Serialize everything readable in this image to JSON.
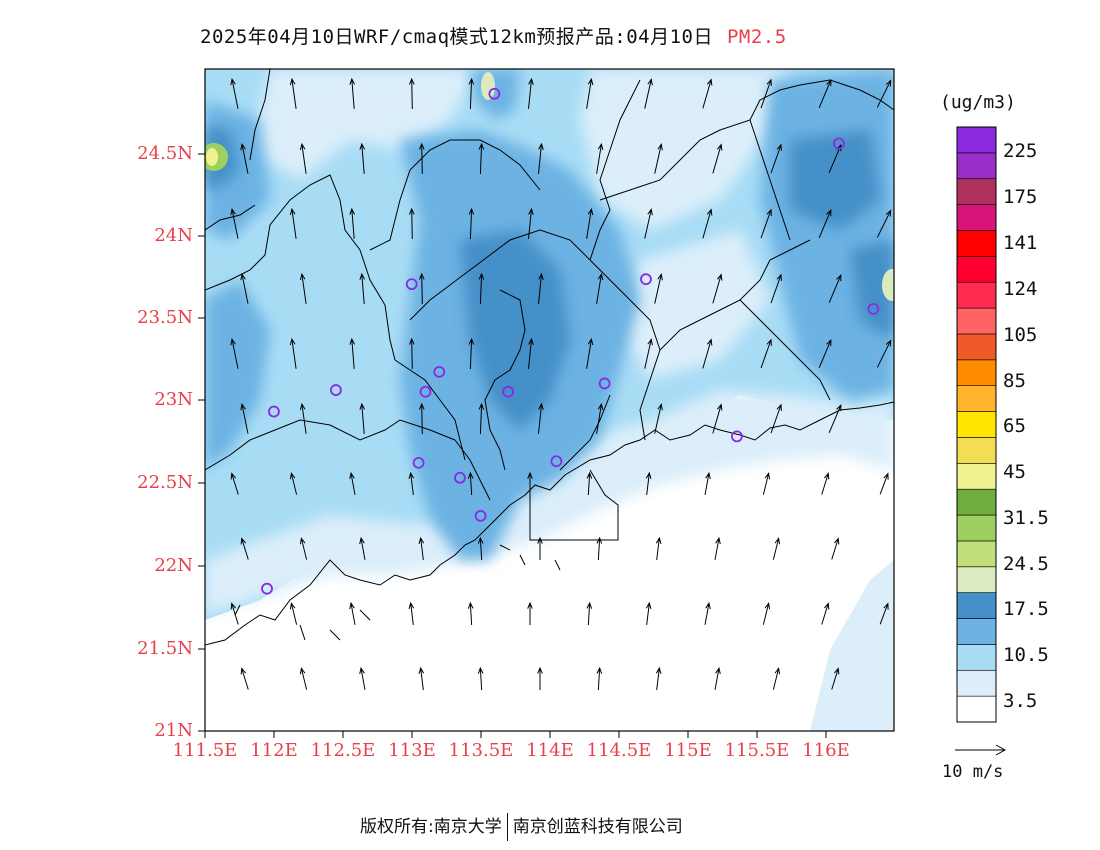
{
  "title": {
    "main": "2025年04月10日WRF/cmaq模式12km预报产品:04月10日",
    "pollutant": "PM2.5"
  },
  "axes": {
    "y_labels": [
      "24.5N",
      "24N",
      "23.5N",
      "23N",
      "22.5N",
      "22N",
      "21.5N",
      "21N"
    ],
    "x_labels": [
      "111.5E",
      "112E",
      "112.5E",
      "113E",
      "113.5E",
      "114E",
      "114.5E",
      "115E",
      "115.5E",
      "116E"
    ],
    "lon_range": [
      111.5,
      116.5
    ],
    "lat_range": [
      21.0,
      25.0
    ]
  },
  "legend": {
    "unit": "(ug/m3)",
    "colors": [
      "#ffffff",
      "#dbeefa",
      "#a8dcf5",
      "#6cb2e3",
      "#4590c8",
      "#dbebc0",
      "#c1e07a",
      "#9ed060",
      "#6eae3c",
      "#f0f290",
      "#f3dd55",
      "#ffe600",
      "#ffb42a",
      "#ff8c00",
      "#f05a28",
      "#ff6464",
      "#ff2a50",
      "#ff0030",
      "#ff0000",
      "#d8147a",
      "#b0305e",
      "#9a2ec8",
      "#8a2be2"
    ],
    "labels": [
      "3.5",
      "10.5",
      "17.5",
      "24.5",
      "31.5",
      "45",
      "65",
      "85",
      "105",
      "124",
      "141",
      "175",
      "225"
    ]
  },
  "wind_reference": {
    "label": "10 m/s"
  },
  "stations": [
    {
      "lon": 113.6,
      "lat": 24.85
    },
    {
      "lon": 116.1,
      "lat": 24.55
    },
    {
      "lon": 113.0,
      "lat": 23.7
    },
    {
      "lon": 114.7,
      "lat": 23.73
    },
    {
      "lon": 116.35,
      "lat": 23.55
    },
    {
      "lon": 113.2,
      "lat": 23.17
    },
    {
      "lon": 112.45,
      "lat": 23.06
    },
    {
      "lon": 113.1,
      "lat": 23.05
    },
    {
      "lon": 113.7,
      "lat": 23.05
    },
    {
      "lon": 114.4,
      "lat": 23.1
    },
    {
      "lon": 112.0,
      "lat": 22.93
    },
    {
      "lon": 115.36,
      "lat": 22.78
    },
    {
      "lon": 113.05,
      "lat": 22.62
    },
    {
      "lon": 114.05,
      "lat": 22.63
    },
    {
      "lon": 113.35,
      "lat": 22.53
    },
    {
      "lon": 113.5,
      "lat": 22.3
    },
    {
      "lon": 111.95,
      "lat": 21.86
    }
  ],
  "footer": {
    "copyright": "版权所有:南京大学",
    "company": "南京创蓝科技有限公司"
  }
}
